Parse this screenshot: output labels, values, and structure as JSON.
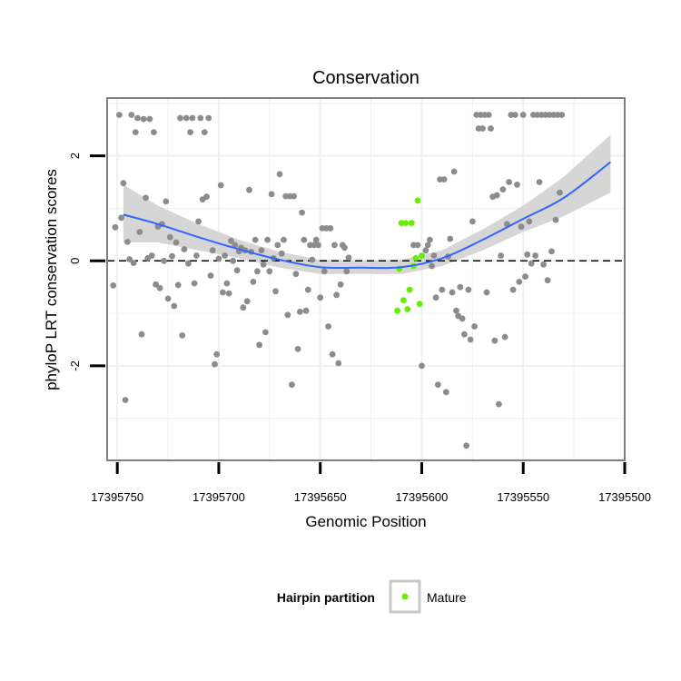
{
  "chart_data": {
    "type": "scatter",
    "title": "Conservation",
    "xlabel": "Genomic Position",
    "ylabel": "phyloP LRT conservation scores",
    "x_reversed": true,
    "xlim": [
      17395500,
      17395755
    ],
    "ylim": [
      -3.8,
      3.1
    ],
    "x_ticks": [
      17395750,
      17395700,
      17395650,
      17395600,
      17395550,
      17395500
    ],
    "x_tick_labels": [
      "17395750",
      "17395700",
      "17395650",
      "17395600",
      "17395550",
      "17395500"
    ],
    "y_ticks": [
      -2,
      0,
      2
    ],
    "y_tick_labels": [
      "-2",
      "0",
      "2"
    ],
    "grid": true,
    "reference_line": {
      "y": 0,
      "style": "dashed"
    },
    "legend": {
      "title": "Hairpin partition",
      "entries": [
        {
          "label": "Mature",
          "color": "#66ee00"
        }
      ],
      "placement": "bottom"
    },
    "colors": {
      "background_points": "#8c8c8c",
      "mature": "#66ee00",
      "smooth_line": "#3366ff",
      "ribbon": "#d2d2d2"
    },
    "series": [
      {
        "name": "",
        "color": "#8c8c8c",
        "points": [
          [
            17395752,
            -0.47
          ],
          [
            17395751,
            0.64
          ],
          [
            17395749,
            2.78
          ],
          [
            17395748,
            0.82
          ],
          [
            17395747,
            1.48
          ],
          [
            17395746,
            -2.65
          ],
          [
            17395745,
            0.36
          ],
          [
            17395744,
            0.03
          ],
          [
            17395743,
            2.78
          ],
          [
            17395742,
            -0.04
          ],
          [
            17395741,
            2.45
          ],
          [
            17395740,
            2.72
          ],
          [
            17395739,
            0.55
          ],
          [
            17395738,
            -1.4
          ],
          [
            17395737,
            2.7
          ],
          [
            17395736,
            1.2
          ],
          [
            17395735,
            0.05
          ],
          [
            17395734,
            2.7
          ],
          [
            17395733,
            0.1
          ],
          [
            17395732,
            2.45
          ],
          [
            17395731,
            -0.45
          ],
          [
            17395730,
            0.65
          ],
          [
            17395729,
            -0.52
          ],
          [
            17395728,
            0.7
          ],
          [
            17395727,
            0.0
          ],
          [
            17395726,
            1.13
          ],
          [
            17395725,
            -0.72
          ],
          [
            17395724,
            0.45
          ],
          [
            17395723,
            0.09
          ],
          [
            17395722,
            -0.86
          ],
          [
            17395721,
            0.35
          ],
          [
            17395720,
            -0.46
          ],
          [
            17395719,
            2.72
          ],
          [
            17395718,
            -1.42
          ],
          [
            17395717,
            0.22
          ],
          [
            17395716,
            2.72
          ],
          [
            17395715,
            -0.05
          ],
          [
            17395714,
            2.45
          ],
          [
            17395713,
            2.72
          ],
          [
            17395712,
            -0.43
          ],
          [
            17395711,
            0.1
          ],
          [
            17395710,
            0.75
          ],
          [
            17395709,
            2.72
          ],
          [
            17395708,
            1.17
          ],
          [
            17395707,
            2.45
          ],
          [
            17395706,
            1.22
          ],
          [
            17395705,
            2.72
          ],
          [
            17395704,
            -0.28
          ],
          [
            17395703,
            0.2
          ],
          [
            17395702,
            -1.97
          ],
          [
            17395701,
            -1.78
          ],
          [
            17395700,
            0.04
          ],
          [
            17395699,
            1.44
          ],
          [
            17395698,
            -0.6
          ],
          [
            17395697,
            0.1
          ],
          [
            17395696,
            -0.43
          ],
          [
            17395695,
            -0.62
          ],
          [
            17395694,
            0.38
          ],
          [
            17395693,
            0.0
          ],
          [
            17395692,
            0.3
          ],
          [
            17395691,
            -0.18
          ],
          [
            17395690,
            0.18
          ],
          [
            17395689,
            0.25
          ],
          [
            17395688,
            -0.89
          ],
          [
            17395687,
            0.2
          ],
          [
            17395686,
            -0.77
          ],
          [
            17395685,
            1.35
          ],
          [
            17395684,
            0.17
          ],
          [
            17395683,
            -0.4
          ],
          [
            17395682,
            0.4
          ],
          [
            17395681,
            -0.2
          ],
          [
            17395680,
            -1.6
          ],
          [
            17395679,
            0.2
          ],
          [
            17395678,
            -0.07
          ],
          [
            17395677,
            -1.36
          ],
          [
            17395676,
            0.4
          ],
          [
            17395675,
            -0.2
          ],
          [
            17395674,
            1.27
          ],
          [
            17395673,
            0.05
          ],
          [
            17395672,
            -0.58
          ],
          [
            17395671,
            0.3
          ],
          [
            17395670,
            1.65
          ],
          [
            17395669,
            0.14
          ],
          [
            17395668,
            0.4
          ],
          [
            17395667,
            1.23
          ],
          [
            17395666,
            -1.03
          ],
          [
            17395665,
            1.23
          ],
          [
            17395664,
            -2.36
          ],
          [
            17395663,
            1.23
          ],
          [
            17395662,
            -0.25
          ],
          [
            17395661,
            -1.68
          ],
          [
            17395660,
            -0.97
          ],
          [
            17395659,
            0.92
          ],
          [
            17395658,
            0.4
          ],
          [
            17395657,
            -0.95
          ],
          [
            17395656,
            -0.55
          ],
          [
            17395655,
            0.3
          ],
          [
            17395654,
            0.02
          ],
          [
            17395653,
            0.3
          ],
          [
            17395652,
            0.4
          ],
          [
            17395651,
            0.3
          ],
          [
            17395650,
            -0.7
          ],
          [
            17395649,
            0.62
          ],
          [
            17395648,
            -0.2
          ],
          [
            17395647,
            0.62
          ],
          [
            17395646,
            -1.25
          ],
          [
            17395645,
            0.62
          ],
          [
            17395644,
            -1.78
          ],
          [
            17395643,
            0.3
          ],
          [
            17395642,
            -0.65
          ],
          [
            17395641,
            -1.95
          ],
          [
            17395640,
            -0.45
          ],
          [
            17395639,
            0.3
          ],
          [
            17395638,
            0.25
          ],
          [
            17395637,
            -0.2
          ],
          [
            17395636,
            0.06
          ],
          [
            17395604,
            0.3
          ],
          [
            17395602,
            0.3
          ],
          [
            17395600,
            -2.0
          ],
          [
            17395598,
            0.2
          ],
          [
            17395597,
            0.3
          ],
          [
            17395596,
            0.4
          ],
          [
            17395595,
            -0.1
          ],
          [
            17395594,
            0.1
          ],
          [
            17395593,
            -0.7
          ],
          [
            17395592,
            -2.36
          ],
          [
            17395591,
            1.55
          ],
          [
            17395590,
            -0.55
          ],
          [
            17395589,
            1.55
          ],
          [
            17395588,
            -2.5
          ],
          [
            17395587,
            0.08
          ],
          [
            17395586,
            0.42
          ],
          [
            17395585,
            -0.6
          ],
          [
            17395584,
            1.7
          ],
          [
            17395583,
            -0.95
          ],
          [
            17395582,
            -1.05
          ],
          [
            17395581,
            -0.5
          ],
          [
            17395580,
            -1.1
          ],
          [
            17395579,
            -1.4
          ],
          [
            17395578,
            -3.52
          ],
          [
            17395577,
            -0.55
          ],
          [
            17395576,
            -1.5
          ],
          [
            17395575,
            0.75
          ],
          [
            17395574,
            -1.25
          ],
          [
            17395573,
            2.78
          ],
          [
            17395572,
            2.52
          ],
          [
            17395571,
            2.78
          ],
          [
            17395570,
            2.52
          ],
          [
            17395569,
            2.78
          ],
          [
            17395568,
            -0.6
          ],
          [
            17395567,
            2.78
          ],
          [
            17395566,
            2.52
          ],
          [
            17395565,
            1.22
          ],
          [
            17395564,
            -1.52
          ],
          [
            17395563,
            1.25
          ],
          [
            17395562,
            -2.73
          ],
          [
            17395561,
            0.1
          ],
          [
            17395560,
            1.36
          ],
          [
            17395559,
            -1.45
          ],
          [
            17395558,
            0.7
          ],
          [
            17395557,
            1.5
          ],
          [
            17395556,
            2.78
          ],
          [
            17395555,
            -0.55
          ],
          [
            17395554,
            2.78
          ],
          [
            17395553,
            1.45
          ],
          [
            17395552,
            -0.4
          ],
          [
            17395551,
            0.65
          ],
          [
            17395550,
            2.78
          ],
          [
            17395549,
            -0.3
          ],
          [
            17395548,
            0.12
          ],
          [
            17395547,
            0.75
          ],
          [
            17395546,
            -0.05
          ],
          [
            17395545,
            2.78
          ],
          [
            17395544,
            0.1
          ],
          [
            17395543,
            2.78
          ],
          [
            17395542,
            1.5
          ],
          [
            17395541,
            2.78
          ],
          [
            17395540,
            -0.07
          ],
          [
            17395539,
            2.78
          ],
          [
            17395538,
            -0.37
          ],
          [
            17395537,
            2.78
          ],
          [
            17395536,
            0.18
          ],
          [
            17395535,
            2.78
          ],
          [
            17395534,
            0.78
          ],
          [
            17395533,
            2.78
          ],
          [
            17395532,
            1.3
          ],
          [
            17395531,
            2.78
          ]
        ]
      },
      {
        "name": "Mature",
        "color": "#66ee00",
        "points": [
          [
            17395612,
            -0.95
          ],
          [
            17395611,
            -0.15
          ],
          [
            17395610,
            0.72
          ],
          [
            17395609,
            -0.75
          ],
          [
            17395608,
            0.72
          ],
          [
            17395607,
            -0.92
          ],
          [
            17395606,
            -0.55
          ],
          [
            17395605,
            0.72
          ],
          [
            17395604,
            -0.1
          ],
          [
            17395603,
            0.05
          ],
          [
            17395602,
            1.15
          ],
          [
            17395601,
            -0.82
          ],
          [
            17395600,
            0.1
          ]
        ]
      }
    ],
    "smooth": {
      "x": [
        17395747,
        17395730,
        17395710,
        17395690,
        17395670,
        17395650,
        17395630,
        17395610,
        17395590,
        17395570,
        17395550,
        17395530,
        17395507
      ],
      "y": [
        0.88,
        0.7,
        0.45,
        0.22,
        0.02,
        -0.12,
        -0.13,
        -0.12,
        0.05,
        0.4,
        0.8,
        1.2,
        1.88
      ],
      "lower": [
        0.35,
        0.35,
        0.2,
        0.05,
        -0.13,
        -0.25,
        -0.25,
        -0.25,
        -0.1,
        0.2,
        0.55,
        0.85,
        1.3
      ],
      "upper": [
        1.45,
        1.05,
        0.7,
        0.4,
        0.17,
        0.02,
        0.0,
        0.02,
        0.2,
        0.6,
        1.05,
        1.6,
        2.4
      ]
    }
  }
}
